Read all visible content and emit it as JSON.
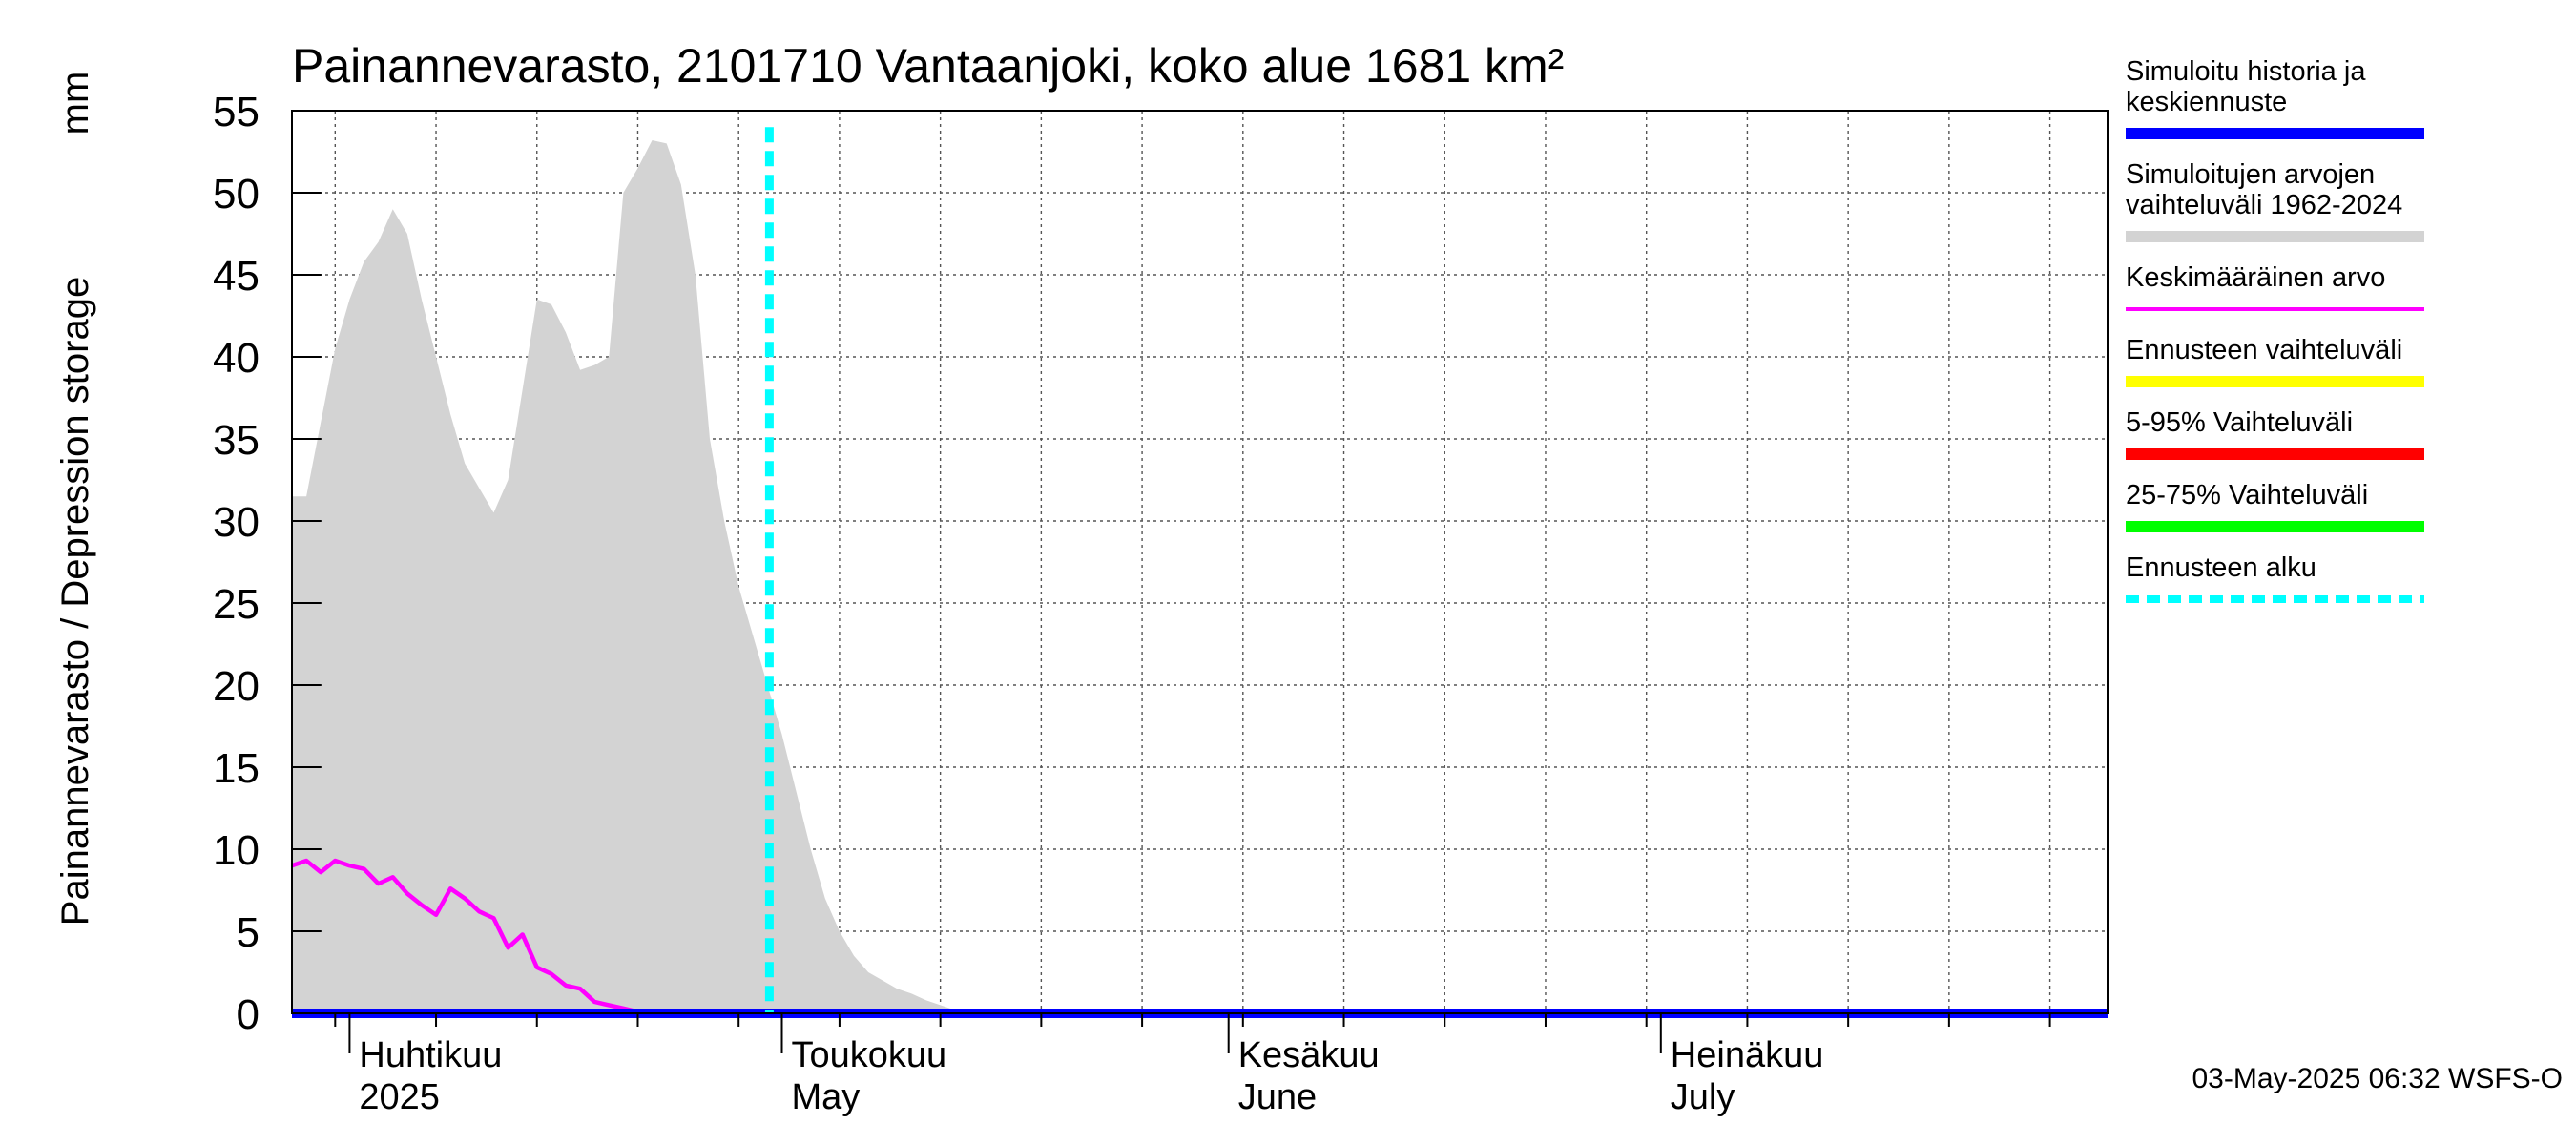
{
  "chart_data": {
    "type": "area",
    "title": "Painannevarasto, 2101710 Vantaanjoki, koko alue 1681 km²",
    "ylabel": "Painannevarasto / Depression storage",
    "yunit": "mm",
    "ylim": [
      0,
      55
    ],
    "yticks": [
      0,
      5,
      10,
      15,
      20,
      25,
      30,
      35,
      40,
      45,
      50,
      55
    ],
    "xlim": [
      "2025-03-28",
      "2025-08-01"
    ],
    "grid": true,
    "legend_position": "right",
    "month_labels": [
      {
        "date": "2025-04-01",
        "fi": "Huhtikuu",
        "en": "2025"
      },
      {
        "date": "2025-05-01",
        "fi": "Toukokuu",
        "en": "May"
      },
      {
        "date": "2025-06-01",
        "fi": "Kesäkuu",
        "en": "June"
      },
      {
        "date": "2025-07-01",
        "fi": "Heinäkuu",
        "en": "July"
      }
    ],
    "forecast_start": "2025-04-30",
    "series": [
      {
        "name": "Simuloitujen arvojen vaihteluväli 1962-2024",
        "kind": "range_band",
        "color": "#d3d3d3",
        "x": [
          "2025-03-28",
          "2025-03-29",
          "2025-03-30",
          "2025-03-31",
          "2025-04-01",
          "2025-04-02",
          "2025-04-03",
          "2025-04-04",
          "2025-04-05",
          "2025-04-06",
          "2025-04-07",
          "2025-04-08",
          "2025-04-09",
          "2025-04-10",
          "2025-04-11",
          "2025-04-12",
          "2025-04-13",
          "2025-04-14",
          "2025-04-15",
          "2025-04-16",
          "2025-04-17",
          "2025-04-18",
          "2025-04-19",
          "2025-04-20",
          "2025-04-21",
          "2025-04-22",
          "2025-04-23",
          "2025-04-24",
          "2025-04-25",
          "2025-04-26",
          "2025-04-27",
          "2025-04-28",
          "2025-04-29",
          "2025-04-30",
          "2025-05-01",
          "2025-05-02",
          "2025-05-03",
          "2025-05-04",
          "2025-05-05",
          "2025-05-06",
          "2025-05-07",
          "2025-05-08",
          "2025-05-09",
          "2025-05-10",
          "2025-05-11",
          "2025-05-12",
          "2025-05-13",
          "2025-05-14",
          "2025-05-15",
          "2025-05-16",
          "2025-05-17",
          "2025-05-18",
          "2025-05-19",
          "2025-05-20",
          "2025-05-21",
          "2025-08-01"
        ],
        "upper": [
          31.5,
          31.5,
          36,
          40.5,
          43.5,
          45.8,
          47,
          49,
          47.5,
          43.5,
          40,
          36.5,
          33.5,
          32,
          30.5,
          32.5,
          38,
          43.5,
          43.2,
          41.5,
          39.2,
          39.5,
          40,
          50,
          51.5,
          53.2,
          53,
          50.5,
          45,
          35,
          30,
          26,
          23,
          20,
          17,
          13.5,
          10,
          7,
          5,
          3.5,
          2.5,
          2,
          1.5,
          1.2,
          0.8,
          0.5,
          0.2,
          0.1,
          0,
          0,
          0,
          0,
          0,
          0,
          0,
          0
        ],
        "lower": [
          0,
          0,
          0,
          0,
          0,
          0,
          0,
          0,
          0,
          0,
          0,
          0,
          0,
          0,
          0,
          0,
          0,
          0,
          0,
          0,
          0,
          0,
          0,
          0,
          0,
          0,
          0,
          0,
          0,
          0,
          0,
          0,
          0,
          0,
          0,
          0,
          0,
          0,
          0,
          0,
          0,
          0,
          0,
          0,
          0,
          0,
          0,
          0,
          0,
          0,
          0,
          0,
          0,
          0,
          0,
          0
        ]
      },
      {
        "name": "Keskimääräinen arvo",
        "kind": "line",
        "color": "#ff00ff",
        "x": [
          "2025-03-28",
          "2025-03-29",
          "2025-03-30",
          "2025-03-31",
          "2025-04-01",
          "2025-04-02",
          "2025-04-03",
          "2025-04-04",
          "2025-04-05",
          "2025-04-06",
          "2025-04-07",
          "2025-04-08",
          "2025-04-09",
          "2025-04-10",
          "2025-04-11",
          "2025-04-12",
          "2025-04-13",
          "2025-04-14",
          "2025-04-15",
          "2025-04-16",
          "2025-04-17",
          "2025-04-18",
          "2025-04-19",
          "2025-04-20",
          "2025-04-21",
          "2025-04-22",
          "2025-04-23",
          "2025-04-24",
          "2025-04-25",
          "2025-04-26",
          "2025-04-27",
          "2025-04-28",
          "2025-04-29",
          "2025-04-30",
          "2025-08-01"
        ],
        "y": [
          9,
          9.3,
          8.6,
          9.3,
          9,
          8.8,
          7.9,
          8.3,
          7.3,
          6.6,
          6,
          7.6,
          7,
          6.2,
          5.8,
          4,
          4.8,
          2.8,
          2.4,
          1.7,
          1.5,
          0.7,
          0.5,
          0.3,
          0.1,
          0,
          0,
          0,
          0,
          0,
          0,
          0,
          0,
          0,
          0
        ]
      },
      {
        "name": "Simuloitu historia ja keskiennuste",
        "kind": "line",
        "color": "#0000ff",
        "x": [
          "2025-03-28",
          "2025-04-06",
          "2025-04-30",
          "2025-08-01"
        ],
        "y": [
          0,
          0,
          0,
          0
        ]
      }
    ],
    "legend": [
      {
        "label": "Simuloitu historia ja keskiennuste",
        "color": "#0000ff",
        "style": "thick"
      },
      {
        "label": "Simuloitujen arvojen vaihteluväli 1962-2024",
        "color": "#d3d3d3",
        "style": "thick"
      },
      {
        "label": "Keskimääräinen arvo",
        "color": "#ff00ff",
        "style": "thin"
      },
      {
        "label": "Ennusteen vaihteluväli",
        "color": "#ffff00",
        "style": "thick"
      },
      {
        "label": "5-95% Vaihteluväli",
        "color": "#ff0000",
        "style": "thick"
      },
      {
        "label": "25-75% Vaihteluväli",
        "color": "#00ff00",
        "style": "thick"
      },
      {
        "label": "Ennusteen alku",
        "color": "#00ffff",
        "style": "dashed"
      }
    ],
    "footer": "03-May-2025 06:32 WSFS-O"
  }
}
